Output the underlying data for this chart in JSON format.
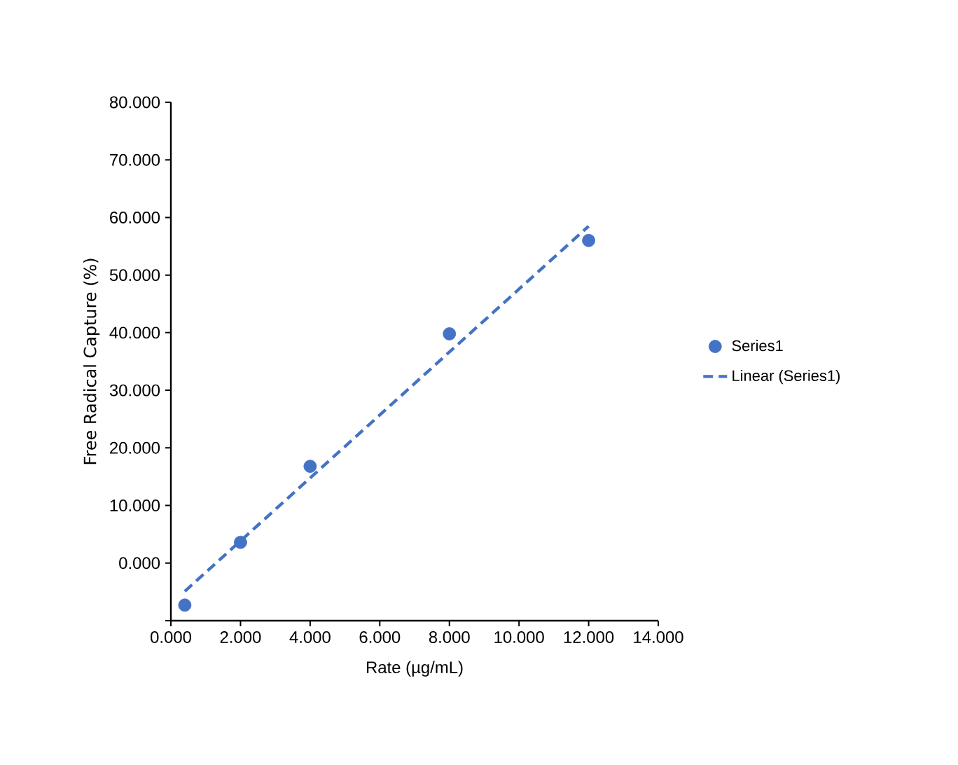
{
  "chart_data": {
    "type": "scatter",
    "xlabel": "Rate (µg/mL)",
    "ylabel": "Free Radical Capture (%)",
    "xlim": [
      0,
      14
    ],
    "ylim": [
      -10,
      80
    ],
    "xticks": [
      {
        "value": 0,
        "label": "0.000"
      },
      {
        "value": 2,
        "label": "2.000"
      },
      {
        "value": 4,
        "label": "4.000"
      },
      {
        "value": 6,
        "label": "6.000"
      },
      {
        "value": 8,
        "label": "8.000"
      },
      {
        "value": 10,
        "label": "10.000"
      },
      {
        "value": 12,
        "label": "12.000"
      },
      {
        "value": 14,
        "label": "14.000"
      }
    ],
    "yticks": [
      {
        "value": -10,
        "label": null
      },
      {
        "value": 0,
        "label": "0.000"
      },
      {
        "value": 10,
        "label": "10.000"
      },
      {
        "value": 20,
        "label": "20.000"
      },
      {
        "value": 30,
        "label": "30.000"
      },
      {
        "value": 40,
        "label": "40.000"
      },
      {
        "value": 50,
        "label": "50.000"
      },
      {
        "value": 60,
        "label": "60.000"
      },
      {
        "value": 70,
        "label": "70.000"
      },
      {
        "value": 80,
        "label": "80.000"
      }
    ],
    "legend": "right",
    "grid": false,
    "series": [
      {
        "name": "Series1",
        "marker": "circle",
        "color": "#4472c4",
        "x": [
          0.4,
          2,
          4,
          8,
          12
        ],
        "values": [
          -7.3,
          3.6,
          16.8,
          39.8,
          56.0
        ]
      },
      {
        "name": "Linear (Series1)",
        "type": "line",
        "marker": "none",
        "line_style": "dashed",
        "color": "#4472c4",
        "x": [
          0.4,
          12
        ],
        "values": [
          -4.9,
          58.5
        ]
      }
    ]
  }
}
